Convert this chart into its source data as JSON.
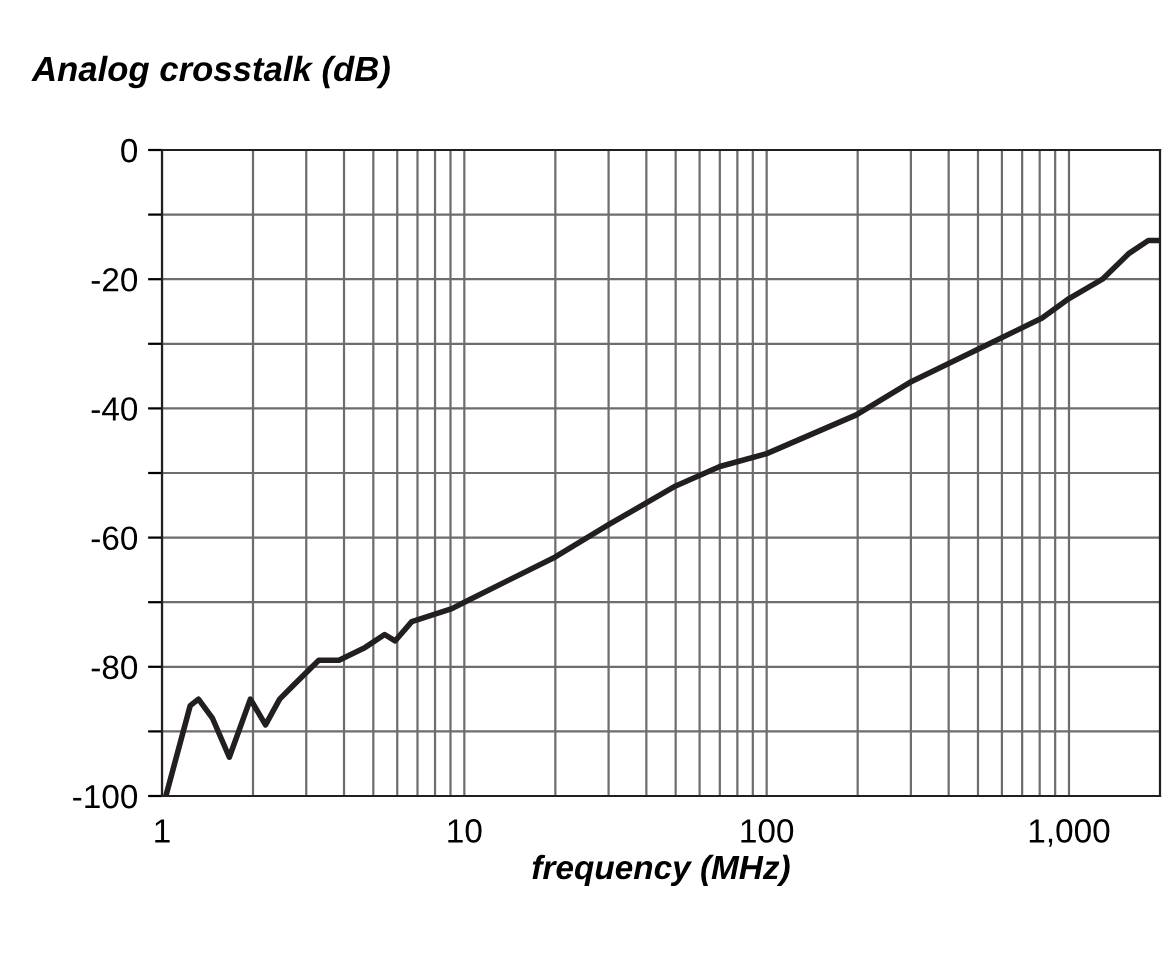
{
  "chart_data": {
    "type": "line",
    "title": "Analog crosstalk (dB)",
    "xlabel": "frequency (MHz)",
    "log": "x",
    "grid": true,
    "legend": false,
    "marker": "none",
    "line_style": "solid",
    "xlim": [
      1,
      2000
    ],
    "ylim": [
      -100,
      0
    ],
    "xticks": [
      1,
      {
        "value": 2,
        "label": null
      },
      {
        "value": 3,
        "label": null
      },
      {
        "value": 4,
        "label": null
      },
      {
        "value": 5,
        "label": null
      },
      {
        "value": 6,
        "label": null
      },
      {
        "value": 7,
        "label": null
      },
      {
        "value": 8,
        "label": null
      },
      {
        "value": 9,
        "label": null
      },
      10,
      {
        "value": 20,
        "label": null
      },
      {
        "value": 30,
        "label": null
      },
      {
        "value": 40,
        "label": null
      },
      {
        "value": 50,
        "label": null
      },
      {
        "value": 60,
        "label": null
      },
      {
        "value": 70,
        "label": null
      },
      {
        "value": 80,
        "label": null
      },
      {
        "value": 90,
        "label": null
      },
      100,
      {
        "value": 200,
        "label": null
      },
      {
        "value": 300,
        "label": null
      },
      {
        "value": 400,
        "label": null
      },
      {
        "value": 500,
        "label": null
      },
      {
        "value": 600,
        "label": null
      },
      {
        "value": 700,
        "label": null
      },
      {
        "value": 800,
        "label": null
      },
      {
        "value": 900,
        "label": null
      },
      {
        "value": 1000,
        "label": "1,000"
      }
    ],
    "yticks": [
      -100,
      {
        "value": -90,
        "label": null
      },
      -80,
      {
        "value": -70,
        "label": null
      },
      -60,
      {
        "value": -50,
        "label": null
      },
      -40,
      {
        "value": -30,
        "label": null
      },
      -20,
      {
        "value": -10,
        "label": null
      },
      0
    ],
    "series": [
      {
        "color": "#231f20",
        "x": [
          1.03,
          1.24,
          1.32,
          1.47,
          1.67,
          1.96,
          2.2,
          2.45,
          2.7,
          3.3,
          3.85,
          4.7,
          5.45,
          5.9,
          6.7,
          9.1,
          10,
          20,
          30,
          50,
          70,
          100,
          198,
          297,
          545,
          815,
          1000,
          1290,
          1580,
          1830,
          2000
        ],
        "values": [
          -100,
          -86,
          -85,
          -88,
          -94,
          -85,
          -89,
          -85,
          -83,
          -79,
          -79,
          -77,
          -75,
          -76,
          -73,
          -71,
          -70,
          -63,
          -58,
          -52,
          -49,
          -47,
          -41,
          -36,
          -30,
          -26,
          -23,
          -20,
          -16,
          -14,
          -14
        ]
      }
    ]
  }
}
